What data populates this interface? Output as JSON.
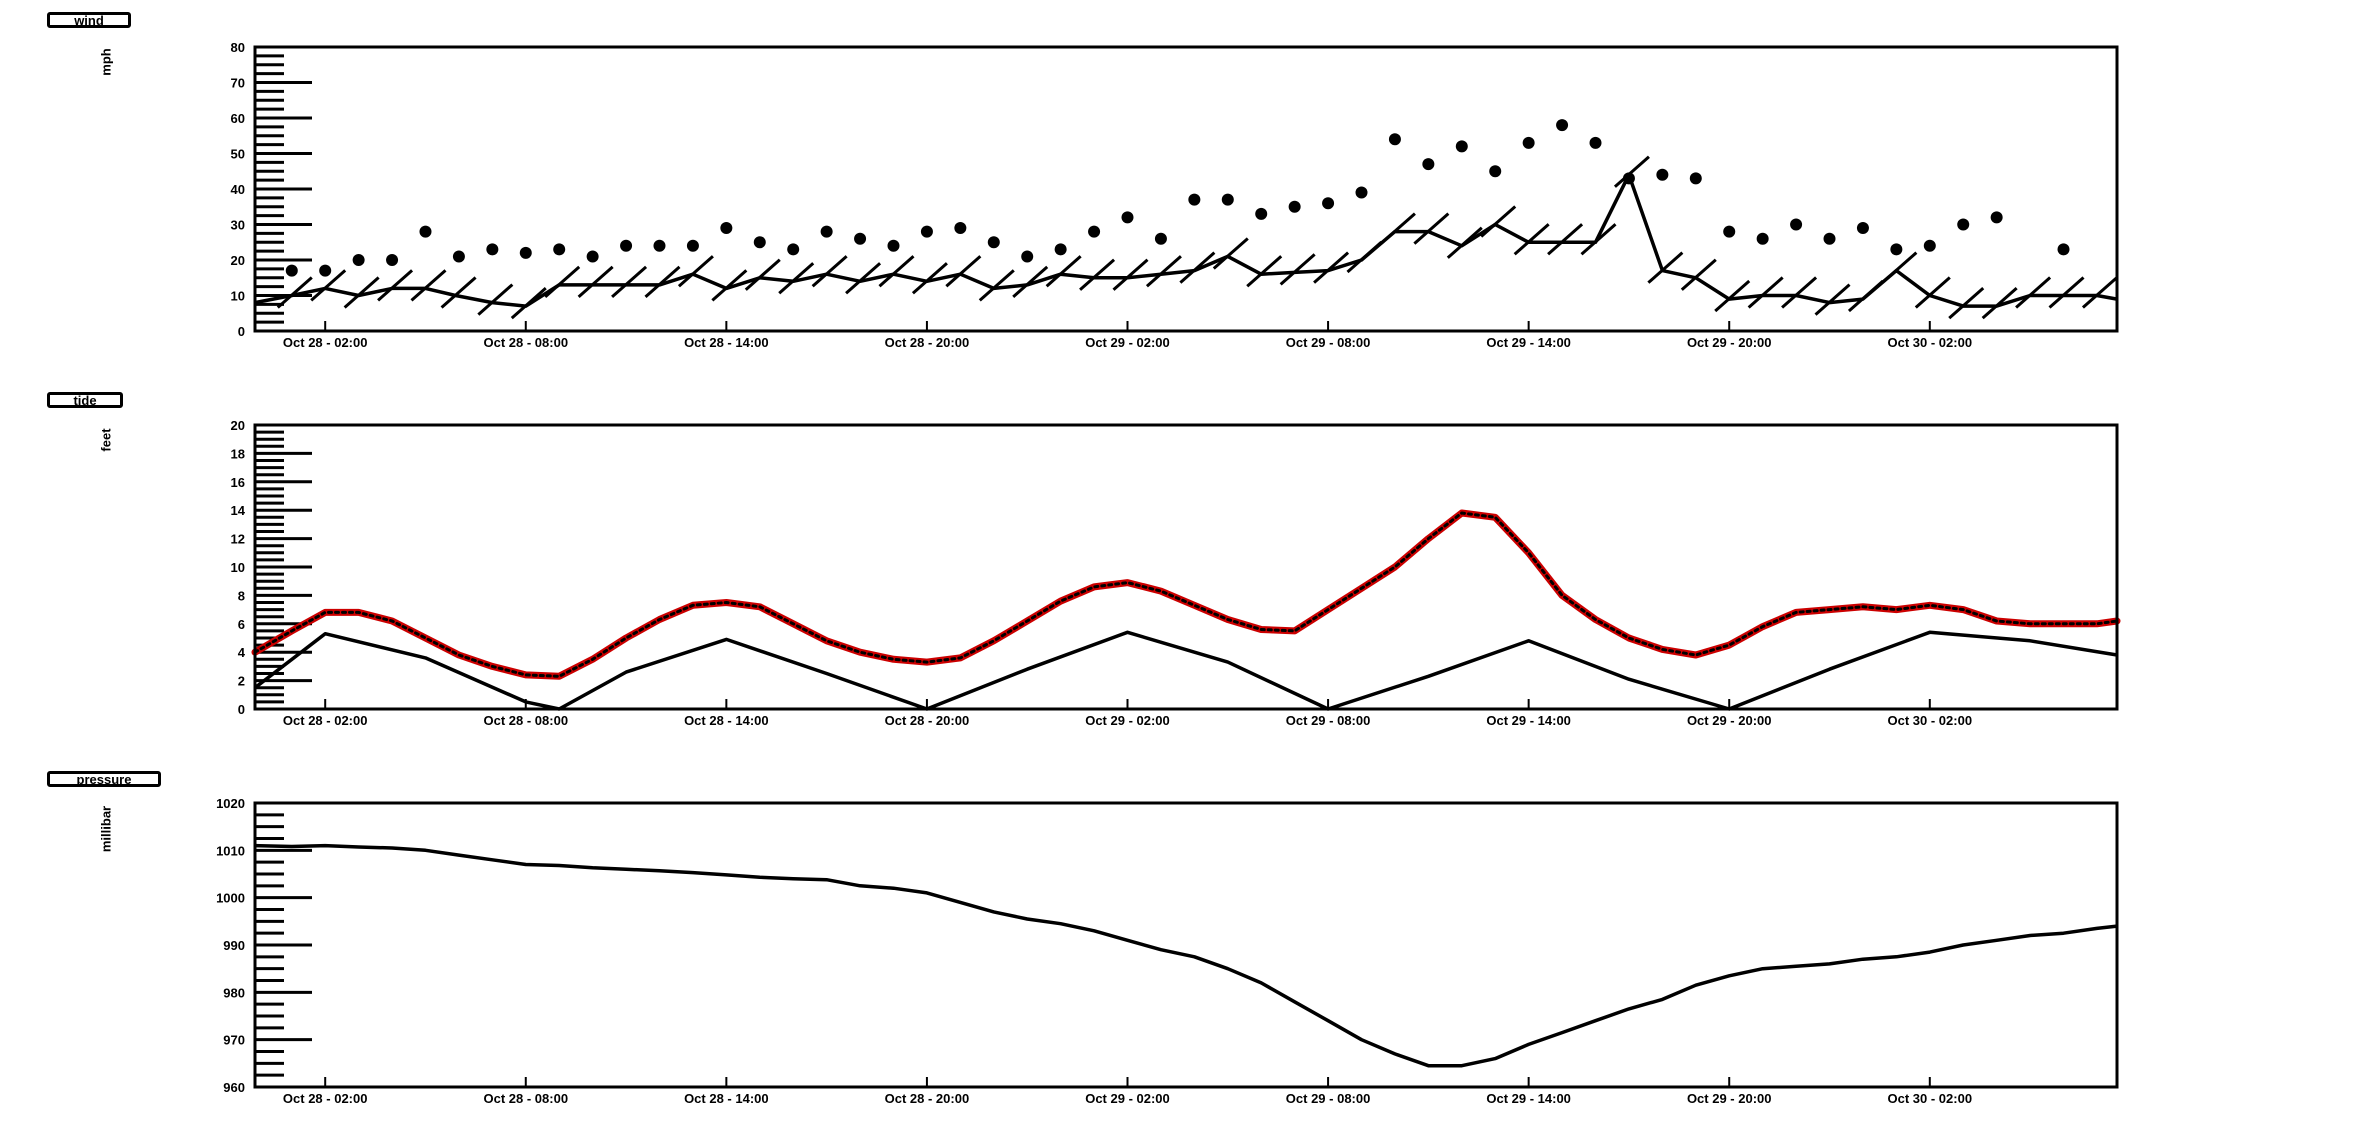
{
  "panels": [
    {
      "id": "wind",
      "button_label": "wind",
      "unit_label": "mph"
    },
    {
      "id": "tide",
      "button_label": "tide",
      "unit_label": "feet"
    },
    {
      "id": "pressure",
      "button_label": "pressure",
      "unit_label": "millibar"
    }
  ],
  "x_tick_labels": [
    "Oct 28 - 02:00",
    "Oct 28 - 08:00",
    "Oct 28 - 14:00",
    "Oct 28 - 20:00",
    "Oct 29 - 02:00",
    "Oct 29 - 08:00",
    "Oct 29 - 14:00",
    "Oct 29 - 20:00",
    "Oct 30 - 02:00"
  ],
  "chart_data": [
    {
      "id": "wind",
      "type": "line",
      "ylabel": "mph",
      "ylim": [
        0,
        80
      ],
      "y_ticks": [
        0,
        10,
        20,
        30,
        40,
        50,
        60,
        70,
        80
      ],
      "xlim_hours": [
        -2.1,
        53.6
      ],
      "x_ticks_hours": [
        0,
        6,
        12,
        18,
        24,
        30,
        36,
        42,
        48
      ],
      "x_tick_labels": [
        "Oct 28 - 02:00",
        "Oct 28 - 08:00",
        "Oct 28 - 14:00",
        "Oct 28 - 20:00",
        "Oct 29 - 02:00",
        "Oct 29 - 08:00",
        "Oct 29 - 14:00",
        "Oct 29 - 20:00",
        "Oct 30 - 02:00"
      ],
      "series": [
        {
          "kind": "line",
          "x": [
            -2.1,
            -1,
            0,
            1,
            2,
            3,
            3.9,
            5,
            6,
            7,
            8,
            9,
            10,
            11,
            12,
            13,
            14,
            15,
            16,
            17,
            18,
            19,
            20,
            21,
            22,
            23,
            24,
            25,
            26,
            27,
            28,
            29,
            30,
            31,
            32,
            33,
            34,
            35,
            36,
            37,
            38,
            39,
            40,
            41,
            42,
            43,
            44,
            45,
            46,
            47,
            48,
            49,
            50,
            51,
            52,
            53,
            53.6
          ],
          "y": [
            8,
            10,
            12,
            10,
            12,
            12,
            10,
            8,
            7,
            13,
            13,
            13,
            13,
            16,
            12,
            15,
            14,
            16,
            14,
            16,
            14,
            16,
            12,
            13,
            16,
            15,
            15,
            16,
            17,
            21,
            16,
            16.5,
            17,
            20,
            28,
            28,
            24,
            30,
            25,
            25,
            25,
            44,
            17,
            15,
            9,
            10,
            10,
            8,
            9,
            17,
            10,
            7,
            7,
            10,
            10,
            10,
            9
          ]
        },
        {
          "kind": "points",
          "x": [
            -1,
            0,
            1,
            2,
            3,
            4,
            5,
            6,
            7,
            8,
            9,
            10,
            11,
            12,
            13,
            14,
            15,
            16,
            17,
            18,
            19,
            20,
            21,
            22,
            23,
            24,
            25,
            26,
            27,
            28,
            29,
            30,
            31,
            32,
            33,
            34,
            35,
            36,
            37,
            38,
            39,
            40,
            41,
            42,
            43,
            44,
            45,
            46,
            47,
            48,
            49,
            50,
            51,
            52,
            53
          ],
          "y": [
            17,
            17,
            20,
            20,
            28,
            21,
            23,
            22,
            23,
            21,
            24,
            24,
            24,
            29,
            25,
            23,
            28,
            26,
            24,
            28,
            29,
            25,
            21,
            23,
            28,
            32,
            26,
            37,
            37,
            33,
            35,
            36,
            39,
            54,
            47,
            52,
            45,
            53,
            58,
            53,
            43,
            44,
            43,
            28,
            26,
            30,
            26,
            29,
            23,
            24,
            30,
            32,
            null,
            23,
            null
          ]
        }
      ]
    },
    {
      "id": "tide",
      "type": "line",
      "ylabel": "feet",
      "ylim": [
        0,
        20
      ],
      "y_ticks": [
        0,
        2,
        4,
        6,
        8,
        10,
        12,
        14,
        16,
        18,
        20
      ],
      "xlim_hours": [
        -2.1,
        53.6
      ],
      "x_ticks_hours": [
        0,
        6,
        12,
        18,
        24,
        30,
        36,
        42,
        48
      ],
      "x_tick_labels": [
        "Oct 28 - 02:00",
        "Oct 28 - 08:00",
        "Oct 28 - 14:00",
        "Oct 28 - 20:00",
        "Oct 29 - 02:00",
        "Oct 29 - 08:00",
        "Oct 29 - 14:00",
        "Oct 29 - 20:00",
        "Oct 30 - 02:00"
      ],
      "series": [
        {
          "kind": "observed",
          "color": "#cc0000",
          "x": [
            -2.1,
            -1,
            0,
            1,
            2,
            3,
            4,
            5,
            6,
            7,
            8,
            9,
            10,
            11,
            12,
            13,
            14,
            15,
            16,
            17,
            18,
            19,
            20,
            21,
            22,
            23,
            24,
            25,
            26,
            27,
            28,
            29,
            30,
            31,
            32,
            33,
            34,
            35,
            36,
            37,
            38,
            39,
            40,
            41,
            42,
            43,
            44,
            45,
            46,
            47,
            48,
            49,
            50,
            51,
            52,
            53,
            53.6
          ],
          "y": [
            4,
            5.5,
            6.8,
            6.8,
            6.2,
            5,
            3.8,
            3,
            2.4,
            2.3,
            3.5,
            5,
            6.3,
            7.3,
            7.5,
            7.2,
            6,
            4.8,
            4,
            3.5,
            3.3,
            3.6,
            4.8,
            6.2,
            7.6,
            8.6,
            8.9,
            8.3,
            7.3,
            6.3,
            5.6,
            5.5,
            7,
            8.5,
            10,
            12,
            13.8,
            13.5,
            11,
            8,
            6.3,
            5,
            4.2,
            3.8,
            4.5,
            5.8,
            6.8,
            7,
            7.2,
            7,
            7.3,
            7,
            6.2,
            6,
            6,
            6,
            6.2
          ]
        },
        {
          "kind": "predicted",
          "color": "#000000",
          "x": [
            -2.1,
            0,
            3,
            6,
            7,
            9,
            12,
            15,
            18,
            21,
            24,
            27,
            30,
            33,
            36,
            39,
            42,
            45,
            48,
            51,
            53.6
          ],
          "y": [
            1.5,
            5.3,
            3.6,
            0.5,
            0,
            2.6,
            4.9,
            2.5,
            0,
            2.8,
            5.4,
            3.3,
            0,
            2.3,
            4.8,
            2.1,
            0,
            2.8,
            5.4,
            4.8,
            3.8
          ]
        }
      ]
    },
    {
      "id": "pressure",
      "type": "line",
      "ylabel": "millibar",
      "ylim": [
        960,
        1020
      ],
      "y_ticks": [
        960,
        970,
        980,
        990,
        1000,
        1010,
        1020
      ],
      "xlim_hours": [
        -2.1,
        53.6
      ],
      "x_ticks_hours": [
        0,
        6,
        12,
        18,
        24,
        30,
        36,
        42,
        48
      ],
      "x_tick_labels": [
        "Oct 28 - 02:00",
        "Oct 28 - 08:00",
        "Oct 28 - 14:00",
        "Oct 28 - 20:00",
        "Oct 29 - 02:00",
        "Oct 29 - 08:00",
        "Oct 29 - 14:00",
        "Oct 29 - 20:00",
        "Oct 30 - 02:00"
      ],
      "series": [
        {
          "kind": "line",
          "x": [
            -2.1,
            -1,
            0,
            1,
            2,
            3,
            4,
            5,
            6,
            7,
            8,
            9,
            10,
            11,
            12,
            13,
            14,
            15,
            16,
            17,
            18,
            19,
            20,
            21,
            22,
            23,
            24,
            25,
            26,
            27,
            28,
            29,
            30,
            31,
            32,
            33,
            34,
            35,
            36,
            37,
            38,
            39,
            40,
            41,
            42,
            43,
            44,
            45,
            46,
            47,
            48,
            49,
            50,
            51,
            52,
            53,
            53.6
          ],
          "y": [
            1011,
            1010.8,
            1011,
            1010.7,
            1010.5,
            1010,
            1009,
            1008,
            1007,
            1006.8,
            1006.3,
            1006,
            1005.7,
            1005.3,
            1004.8,
            1004.3,
            1004,
            1003.8,
            1002.5,
            1002,
            1001,
            999,
            997,
            995.5,
            994.5,
            993,
            991,
            989,
            987.5,
            985,
            982,
            978,
            974,
            970,
            967,
            964.5,
            964.5,
            966,
            969,
            971.5,
            974,
            976.5,
            978.5,
            981.5,
            983.5,
            985,
            985.5,
            986,
            987,
            987.5,
            988.5,
            990,
            991,
            992,
            992.5,
            993.5,
            994
          ]
        }
      ]
    }
  ]
}
